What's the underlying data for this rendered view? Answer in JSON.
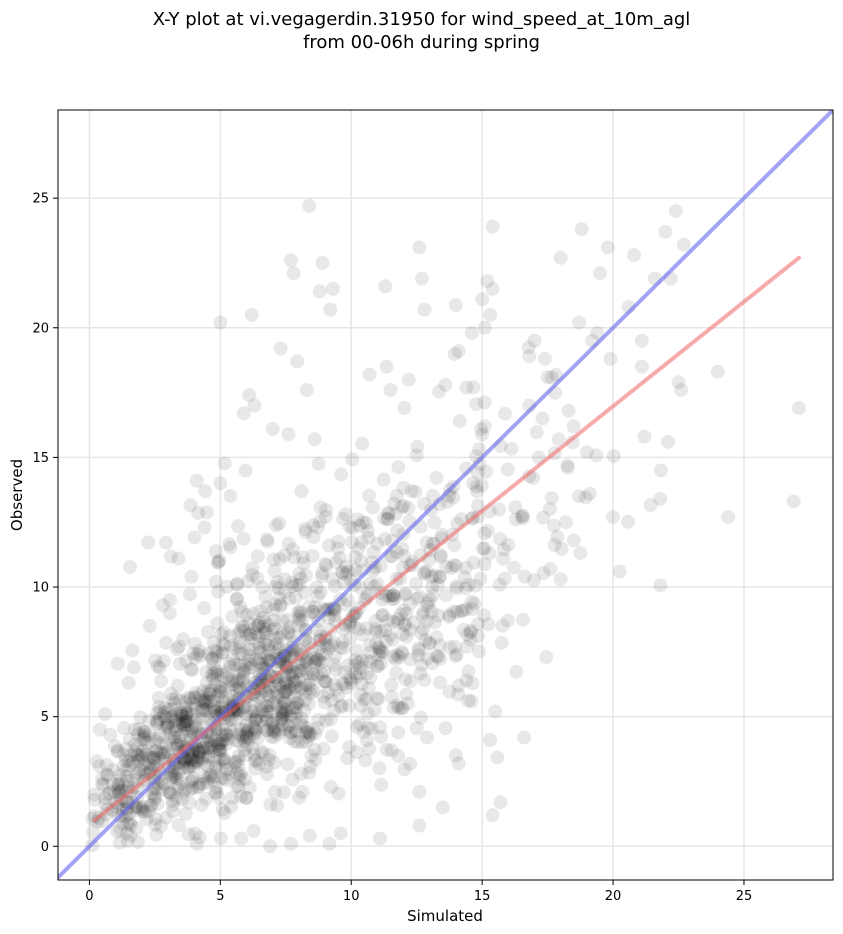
{
  "chart_data": {
    "type": "scatter",
    "title_line1": "X-Y plot at vi.vegagerdin.31950 for wind_speed_at_10m_agl",
    "title_line2": "from 00-06h during spring",
    "xlabel": "Simulated",
    "ylabel": "Observed",
    "xlim": [
      -1.2,
      28.4
    ],
    "ylim": [
      -1.3,
      28.4
    ],
    "xticks": [
      0,
      5,
      10,
      15,
      20,
      25
    ],
    "yticks": [
      0,
      5,
      10,
      15,
      20,
      25
    ],
    "grid": true,
    "marker_color": "#000000",
    "marker_alpha": 0.09,
    "identity_line": {
      "color": "#6666ee",
      "from": [
        -1.2,
        -1.2
      ],
      "to": [
        28.4,
        28.4
      ]
    },
    "fit_line": {
      "color": "#ee6666",
      "from": [
        0.2,
        1.0
      ],
      "to": [
        27.1,
        22.7
      ]
    },
    "points_sparse": [
      [
        8.4,
        24.7
      ],
      [
        7.7,
        22.6
      ],
      [
        7.8,
        22.1
      ],
      [
        8.9,
        22.5
      ],
      [
        8.8,
        21.4
      ],
      [
        9.3,
        21.5
      ],
      [
        9.2,
        20.7
      ],
      [
        5.0,
        20.2
      ],
      [
        6.2,
        20.5
      ],
      [
        7.3,
        19.2
      ],
      [
        8.3,
        17.6
      ],
      [
        11.3,
        21.6
      ],
      [
        12.6,
        23.1
      ],
      [
        12.7,
        21.9
      ],
      [
        15.4,
        23.9
      ],
      [
        15.2,
        21.8
      ],
      [
        15.4,
        21.5
      ],
      [
        15.0,
        21.1
      ],
      [
        15.3,
        20.5
      ],
      [
        15.1,
        20.0
      ],
      [
        18.8,
        23.8
      ],
      [
        19.8,
        23.1
      ],
      [
        20.8,
        22.8
      ],
      [
        22.4,
        24.5
      ],
      [
        22.7,
        23.2
      ],
      [
        22.0,
        23.7
      ],
      [
        21.6,
        21.9
      ],
      [
        22.2,
        21.9
      ],
      [
        19.5,
        22.1
      ],
      [
        18.0,
        22.7
      ],
      [
        20.6,
        20.8
      ],
      [
        21.1,
        19.5
      ],
      [
        19.2,
        19.5
      ],
      [
        18.7,
        20.2
      ],
      [
        17.0,
        19.5
      ],
      [
        16.8,
        18.9
      ],
      [
        17.4,
        18.8
      ],
      [
        17.5,
        18.1
      ],
      [
        24.0,
        18.3
      ],
      [
        22.5,
        17.9
      ],
      [
        22.6,
        17.6
      ],
      [
        21.1,
        18.5
      ],
      [
        19.4,
        19.8
      ],
      [
        19.9,
        18.8
      ],
      [
        21.2,
        15.8
      ],
      [
        22.1,
        15.6
      ],
      [
        21.8,
        13.4
      ],
      [
        20.0,
        12.7
      ],
      [
        24.4,
        12.7
      ],
      [
        26.9,
        13.3
      ],
      [
        27.1,
        16.9
      ],
      [
        19.0,
        15.2
      ],
      [
        18.7,
        13.5
      ],
      [
        18.2,
        12.5
      ],
      [
        17.6,
        10.7
      ],
      [
        18.0,
        10.3
      ],
      [
        16.6,
        4.2
      ],
      [
        15.3,
        4.1
      ],
      [
        15.5,
        5.2
      ],
      [
        15.7,
        1.7
      ],
      [
        15.4,
        1.2
      ],
      [
        14.4,
        6.4
      ],
      [
        14.1,
        6.2
      ],
      [
        14.0,
        3.5
      ],
      [
        14.1,
        3.2
      ],
      [
        12.6,
        2.1
      ],
      [
        12.6,
        0.8
      ],
      [
        13.5,
        1.5
      ],
      [
        11.1,
        0.3
      ],
      [
        9.6,
        0.5
      ],
      [
        7.7,
        0.1
      ],
      [
        6.9,
        0.0
      ],
      [
        5.8,
        0.3
      ],
      [
        4.1,
        0.1
      ],
      [
        0.6,
        5.1
      ],
      [
        0.4,
        4.5
      ],
      [
        0.8,
        4.3
      ],
      [
        1.7,
        6.9
      ],
      [
        1.5,
        6.3
      ],
      [
        2.3,
        8.5
      ],
      [
        2.8,
        9.3
      ],
      [
        3.4,
        11.1
      ],
      [
        3.9,
        10.4
      ],
      [
        4.1,
        14.1
      ],
      [
        5.0,
        14.0
      ],
      [
        4.4,
        12.3
      ],
      [
        5.9,
        16.7
      ],
      [
        6.1,
        17.4
      ],
      [
        6.3,
        17.0
      ],
      [
        7.0,
        16.1
      ],
      [
        7.6,
        15.9
      ],
      [
        8.6,
        15.7
      ],
      [
        10.7,
        18.2
      ],
      [
        11.5,
        17.6
      ],
      [
        12.2,
        18.0
      ],
      [
        13.6,
        17.8
      ],
      [
        14.4,
        17.7
      ],
      [
        14.6,
        19.8
      ],
      [
        12.8,
        20.7
      ],
      [
        14.1,
        19.1
      ],
      [
        15.1,
        16.2
      ],
      [
        16.8,
        17.0
      ],
      [
        17.3,
        16.5
      ],
      [
        18.3,
        16.8
      ]
    ],
    "cluster_centers": [
      [
        1.2,
        1.5,
        0.8,
        0.7,
        60
      ],
      [
        2.5,
        2.8,
        1.0,
        1.2,
        120
      ],
      [
        3.8,
        3.8,
        1.1,
        1.4,
        180
      ],
      [
        5.0,
        5.0,
        1.3,
        1.6,
        220
      ],
      [
        6.5,
        6.2,
        1.4,
        1.8,
        200
      ],
      [
        8.0,
        7.5,
        1.5,
        2.0,
        180
      ],
      [
        9.8,
        8.8,
        1.7,
        2.3,
        150
      ],
      [
        11.5,
        9.8,
        1.8,
        2.5,
        110
      ],
      [
        13.3,
        11.2,
        1.9,
        2.7,
        80
      ],
      [
        15.5,
        12.8,
        2.0,
        2.7,
        50
      ],
      [
        17.5,
        14.3,
        1.8,
        2.5,
        30
      ],
      [
        5.5,
        11.5,
        1.8,
        1.5,
        35
      ],
      [
        9.0,
        4.5,
        1.8,
        2.0,
        40
      ],
      [
        12.0,
        7.0,
        1.4,
        2.0,
        40
      ]
    ]
  }
}
